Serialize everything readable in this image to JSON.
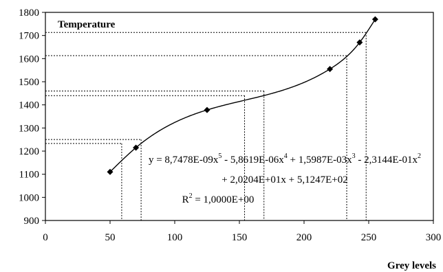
{
  "chart_data": {
    "type": "scatter",
    "title": "Temperature",
    "xlabel": "Grey levels",
    "ylabel": "",
    "xlim": [
      0,
      300
    ],
    "ylim": [
      900,
      1800
    ],
    "x_ticks": [
      "0",
      "50",
      "100",
      "150",
      "200",
      "250",
      "300"
    ],
    "y_ticks": [
      "900",
      "1000",
      "1100",
      "1200",
      "1300",
      "1400",
      "1500",
      "1600",
      "1700",
      "1800"
    ],
    "grid": false,
    "series": [
      {
        "points": [
          {
            "x": 50,
            "y": 1110
          },
          {
            "x": 70,
            "y": 1215
          },
          {
            "x": 125,
            "y": 1378
          },
          {
            "x": 220,
            "y": 1555
          },
          {
            "x": 243,
            "y": 1670
          },
          {
            "x": 255,
            "y": 1770
          }
        ]
      }
    ],
    "trendline": {
      "type": "polynomial",
      "order": 5,
      "coefficients": {
        "x5": 8.7478e-09,
        "x4": -5.8619e-06,
        "x3": 0.0015987,
        "x2": -0.23144,
        "x1": 20.204,
        "x0": 512.47
      }
    },
    "equation": {
      "line1_parts": [
        "y = 8,7478E-09x",
        "5",
        " - 5,8619E-06x",
        "4",
        " + 1,5987E-03x",
        "3",
        " - 2,3144E-01x",
        "2"
      ],
      "line2": "+ 2,0204E+01x + 5,1247E+02",
      "r2_prefix": "R",
      "r2_exp": "2",
      "r2_value": " = 1,0000E+00"
    },
    "reference_lines": [
      {
        "x": 59,
        "y": 1233
      },
      {
        "x": 74,
        "y": 1250
      },
      {
        "x": 154,
        "y": 1440
      },
      {
        "x": 169,
        "y": 1460
      },
      {
        "x": 233,
        "y": 1613
      },
      {
        "x": 248,
        "y": 1713
      }
    ]
  }
}
